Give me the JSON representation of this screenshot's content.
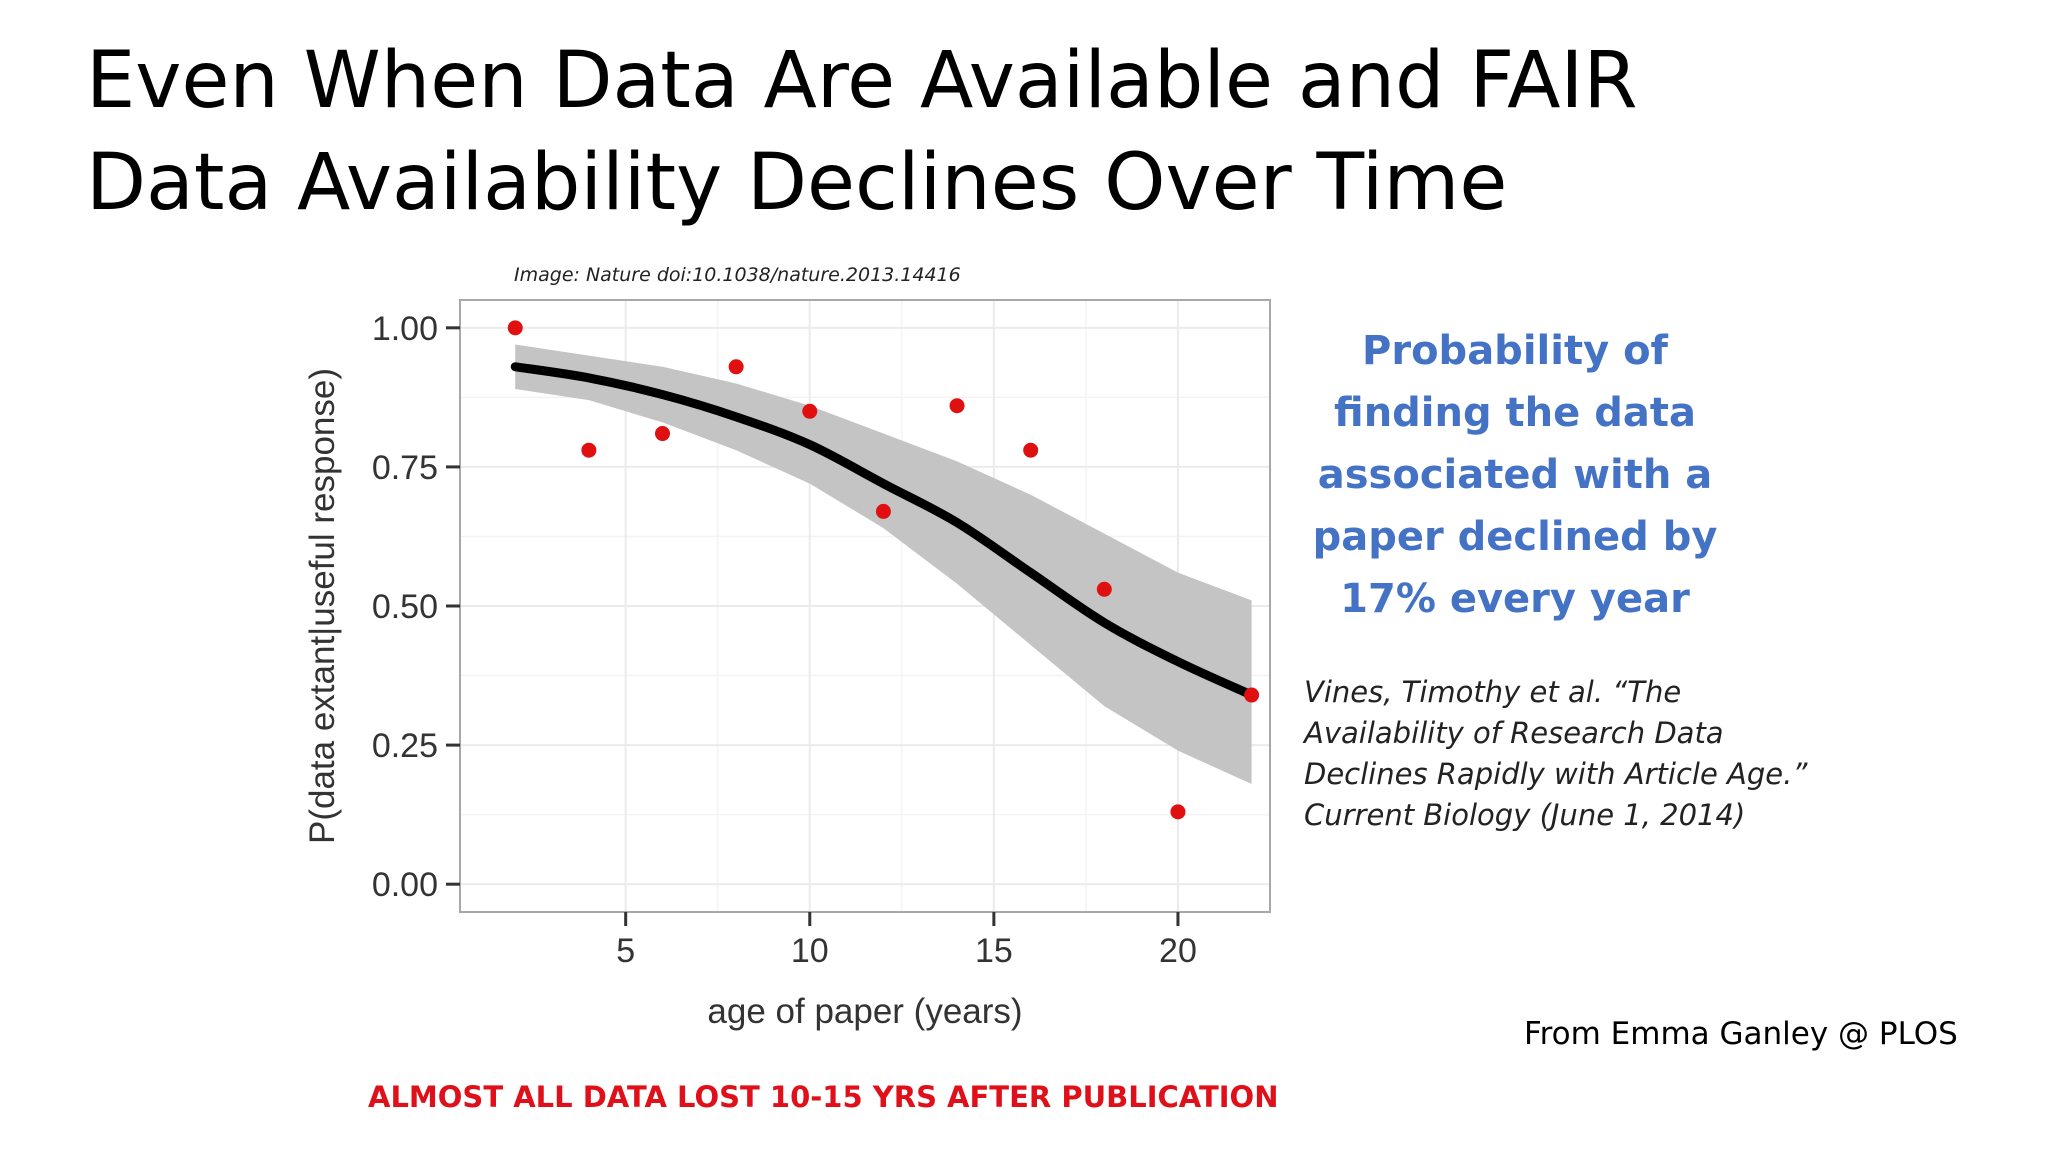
{
  "slide": {
    "title_lines": [
      "Even When Data Are Available and FAIR",
      "Data Availability Declines Over Time"
    ],
    "image_credit": "Image: Nature doi:10.1038/nature.2013.14416",
    "highlight_lines": [
      "Probability of",
      "finding the data",
      "associated with a",
      "paper declined by",
      "17% every year"
    ],
    "citation_lines": [
      "Vines, Timothy et al. “The",
      "Availability of Research Data",
      "Declines Rapidly with Article Age.”",
      "Current Biology (June 1, 2014)"
    ],
    "source_credit": "From Emma Ganley @ PLOS",
    "warning": "ALMOST ALL DATA LOST 10-15 YRS AFTER PUBLICATION"
  },
  "colors": {
    "highlight_text": "#4472c4",
    "warning_text": "#e0101a",
    "points": "#e01010",
    "fit_line": "#000000",
    "confidence_band": "#c4c4c4",
    "panel_border": "#a8a8a8",
    "grid": "#ebebeb"
  },
  "chart_data": {
    "type": "scatter",
    "xlabel": "age of paper (years)",
    "ylabel": "P(data extant|useful response)",
    "xlim": [
      0.5,
      22.5
    ],
    "ylim": [
      -0.05,
      1.05
    ],
    "x_ticks": [
      5,
      10,
      15,
      20
    ],
    "x_tick_labels": [
      "5",
      "10",
      "15",
      "20"
    ],
    "y_ticks": [
      0,
      0.25,
      0.5,
      0.75,
      1
    ],
    "y_tick_labels": [
      "0.00",
      "0.25",
      "0.50",
      "0.75",
      "1.00"
    ],
    "grid": true,
    "points": {
      "x": [
        2,
        4,
        6,
        8,
        10,
        12,
        14,
        16,
        18,
        20,
        22
      ],
      "y": [
        1.0,
        0.78,
        0.81,
        0.93,
        0.85,
        0.67,
        0.86,
        0.78,
        0.53,
        0.13,
        0.34
      ]
    },
    "fit": {
      "x": [
        2,
        4,
        6,
        8,
        10,
        12,
        14,
        16,
        18,
        20,
        22
      ],
      "y": [
        0.93,
        0.91,
        0.88,
        0.84,
        0.79,
        0.72,
        0.65,
        0.56,
        0.47,
        0.4,
        0.34
      ]
    },
    "confidence_band": {
      "x": [
        2,
        4,
        6,
        8,
        10,
        12,
        14,
        16,
        18,
        20,
        22
      ],
      "upper": [
        0.97,
        0.95,
        0.93,
        0.9,
        0.86,
        0.81,
        0.76,
        0.7,
        0.63,
        0.56,
        0.51
      ],
      "lower": [
        0.89,
        0.87,
        0.83,
        0.78,
        0.72,
        0.64,
        0.54,
        0.43,
        0.32,
        0.24,
        0.18
      ]
    }
  }
}
